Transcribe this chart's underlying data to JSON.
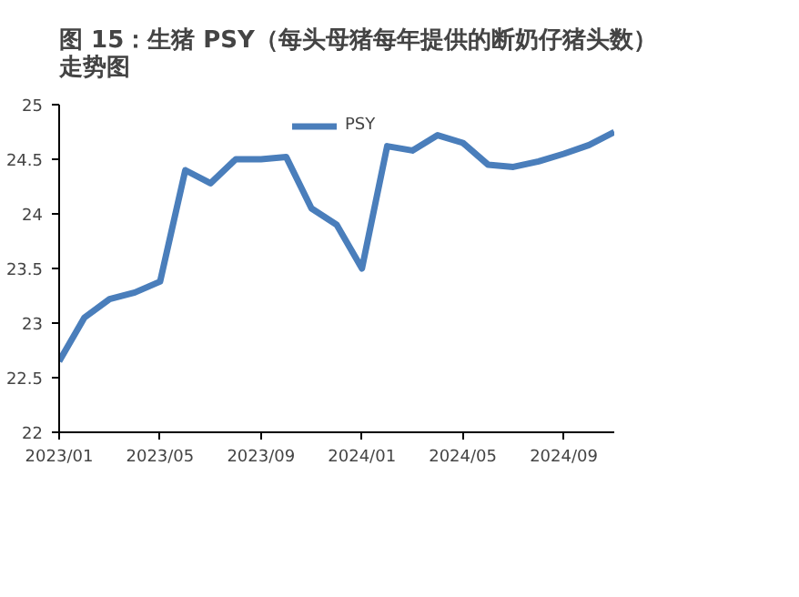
{
  "chart_data": {
    "type": "line",
    "title": "图 15：生猪 PSY（每头母猪每年提供的断奶仔猪头数）走势图",
    "x": [
      "2023-01",
      "2023-02",
      "2023-03",
      "2023-04",
      "2023-05",
      "2023-06",
      "2023-07",
      "2023-08",
      "2023-09",
      "2023-10",
      "2023-11",
      "2023-12",
      "2024-01",
      "2024-02",
      "2024-03",
      "2024-04",
      "2024-05",
      "2024-06",
      "2024-07",
      "2024-08",
      "2024-09",
      "2024-10",
      "2024-11"
    ],
    "series": [
      {
        "name": "PSY",
        "color": "#4a7ebb",
        "values": [
          22.65,
          23.05,
          23.22,
          23.28,
          23.38,
          24.4,
          24.28,
          24.5,
          24.5,
          24.52,
          24.05,
          23.9,
          23.5,
          24.62,
          24.58,
          24.72,
          24.65,
          24.45,
          24.43,
          24.48,
          24.55,
          24.63,
          24.75
        ]
      }
    ],
    "xlim": [
      "2023-01",
      "2024-11"
    ],
    "xticks": [
      {
        "value": "2023-01",
        "label": "2023/01"
      },
      {
        "value": "2023-05",
        "label": "2023/05"
      },
      {
        "value": "2023-09",
        "label": "2023/09"
      },
      {
        "value": "2024-01",
        "label": "2024/01"
      },
      {
        "value": "2024-05",
        "label": "2024/05"
      },
      {
        "value": "2024-09",
        "label": "2024/09"
      }
    ],
    "ylim": [
      22,
      25
    ],
    "yticks": [
      22,
      22.5,
      23,
      23.5,
      24,
      24.5,
      25
    ],
    "grid": false,
    "legend": "top",
    "marker": "none",
    "line_style": "solid"
  }
}
